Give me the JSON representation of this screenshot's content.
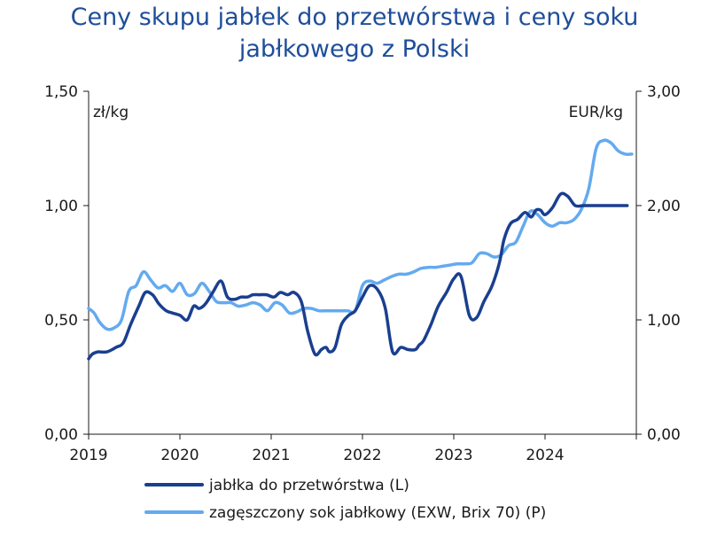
{
  "chart_data": {
    "type": "line",
    "title_line1": "Ceny skupu jabłek do przetwórstwa i ceny soku",
    "title_line2": "jabłkowego z Polski",
    "y_left_unit": "zł/kg",
    "y_right_unit": "EUR/kg",
    "y_left_lim": [
      0,
      1.5
    ],
    "y_right_lim": [
      0,
      3.0
    ],
    "y_left_ticks": [
      "0,00",
      "0,50",
      "1,00",
      "1,50"
    ],
    "y_right_ticks": [
      "0,00",
      "1,00",
      "2,00",
      "3,00"
    ],
    "x_lim": [
      2019.0,
      2025.0
    ],
    "x_ticks": [
      "2019",
      "2020",
      "2021",
      "2022",
      "2023",
      "2024"
    ],
    "grid": false,
    "legend_position": "bottom",
    "series": [
      {
        "name": "jabłka do przetwórstwa (L)",
        "axis": "left",
        "color": "#1a3f8f",
        "x": [
          2019.0,
          2019.04,
          2019.1,
          2019.2,
          2019.3,
          2019.38,
          2019.46,
          2019.55,
          2019.62,
          2019.7,
          2019.77,
          2019.85,
          2019.92,
          2020.0,
          2020.08,
          2020.15,
          2020.21,
          2020.28,
          2020.36,
          2020.45,
          2020.52,
          2020.6,
          2020.67,
          2020.74,
          2020.8,
          2020.87,
          2020.95,
          2021.03,
          2021.1,
          2021.18,
          2021.25,
          2021.33,
          2021.4,
          2021.48,
          2021.55,
          2021.6,
          2021.64,
          2021.7,
          2021.77,
          2021.85,
          2021.92,
          2022.0,
          2022.08,
          2022.17,
          2022.25,
          2022.33,
          2022.42,
          2022.5,
          2022.58,
          2022.62,
          2022.67,
          2022.75,
          2022.83,
          2022.92,
          2023.0,
          2023.08,
          2023.17,
          2023.25,
          2023.33,
          2023.42,
          2023.5,
          2023.55,
          2023.62,
          2023.7,
          2023.78,
          2023.85,
          2023.9,
          2023.95,
          2024.0,
          2024.08,
          2024.17,
          2024.25,
          2024.33,
          2024.42,
          2024.5,
          2024.58,
          2024.67,
          2024.75,
          2024.83,
          2024.9
        ],
        "y": [
          0.33,
          0.35,
          0.36,
          0.36,
          0.38,
          0.4,
          0.48,
          0.56,
          0.62,
          0.61,
          0.57,
          0.54,
          0.53,
          0.52,
          0.5,
          0.56,
          0.55,
          0.57,
          0.62,
          0.67,
          0.6,
          0.59,
          0.6,
          0.6,
          0.61,
          0.61,
          0.61,
          0.6,
          0.62,
          0.61,
          0.62,
          0.58,
          0.45,
          0.35,
          0.37,
          0.38,
          0.36,
          0.38,
          0.48,
          0.52,
          0.54,
          0.6,
          0.65,
          0.63,
          0.55,
          0.36,
          0.38,
          0.37,
          0.37,
          0.39,
          0.41,
          0.48,
          0.56,
          0.62,
          0.68,
          0.69,
          0.52,
          0.51,
          0.58,
          0.65,
          0.75,
          0.85,
          0.92,
          0.94,
          0.97,
          0.95,
          0.98,
          0.98,
          0.96,
          0.99,
          1.05,
          1.04,
          1.0,
          1.0,
          1.0,
          1.0,
          1.0,
          1.0,
          1.0,
          1.0
        ],
        "y_note": ""
      },
      {
        "name": "zagęszczony sok jabłkowy (EXW, Brix 70) (P)",
        "axis": "right",
        "color": "#63aaf0",
        "x": [
          2019.0,
          2019.06,
          2019.12,
          2019.2,
          2019.28,
          2019.36,
          2019.44,
          2019.52,
          2019.6,
          2019.68,
          2019.76,
          2019.84,
          2019.92,
          2020.0,
          2020.08,
          2020.16,
          2020.24,
          2020.32,
          2020.4,
          2020.48,
          2020.56,
          2020.64,
          2020.72,
          2020.8,
          2020.88,
          2020.96,
          2021.04,
          2021.12,
          2021.2,
          2021.28,
          2021.36,
          2021.44,
          2021.52,
          2021.6,
          2021.68,
          2021.76,
          2021.84,
          2021.92,
          2022.0,
          2022.08,
          2022.16,
          2022.24,
          2022.32,
          2022.4,
          2022.48,
          2022.56,
          2022.64,
          2022.72,
          2022.8,
          2022.88,
          2022.96,
          2023.04,
          2023.12,
          2023.2,
          2023.28,
          2023.36,
          2023.44,
          2023.52,
          2023.6,
          2023.68,
          2023.76,
          2023.84,
          2023.92,
          2024.0,
          2024.08,
          2024.16,
          2024.24,
          2024.32,
          2024.4,
          2024.48,
          2024.56,
          2024.64,
          2024.72,
          2024.8,
          2024.88,
          2024.95
        ],
        "y": [
          1.1,
          1.06,
          0.98,
          0.92,
          0.93,
          1.0,
          1.25,
          1.3,
          1.42,
          1.35,
          1.28,
          1.3,
          1.25,
          1.32,
          1.22,
          1.23,
          1.32,
          1.25,
          1.16,
          1.15,
          1.15,
          1.12,
          1.13,
          1.15,
          1.13,
          1.08,
          1.15,
          1.13,
          1.06,
          1.07,
          1.1,
          1.1,
          1.08,
          1.08,
          1.08,
          1.08,
          1.08,
          1.08,
          1.3,
          1.34,
          1.32,
          1.35,
          1.38,
          1.4,
          1.4,
          1.42,
          1.45,
          1.46,
          1.46,
          1.47,
          1.48,
          1.49,
          1.49,
          1.5,
          1.58,
          1.58,
          1.55,
          1.57,
          1.65,
          1.68,
          1.82,
          1.95,
          1.92,
          1.85,
          1.82,
          1.85,
          1.85,
          1.88,
          1.97,
          2.15,
          2.5,
          2.57,
          2.55,
          2.48,
          2.45,
          2.45
        ]
      }
    ]
  }
}
